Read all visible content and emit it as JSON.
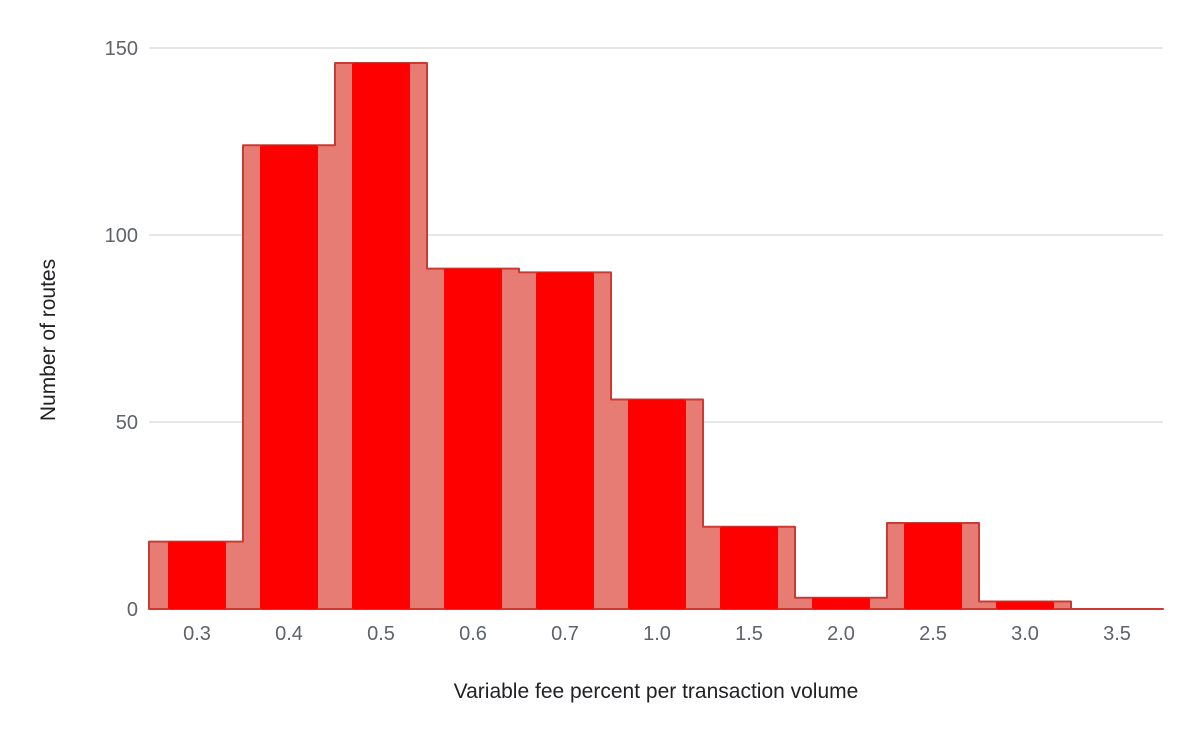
{
  "chart_data": {
    "type": "bar",
    "title": "",
    "xlabel": "Variable fee percent per transaction volume",
    "ylabel": "Number of routes",
    "categories": [
      "0.3",
      "0.4",
      "0.5",
      "0.6",
      "0.7",
      "1.0",
      "1.5",
      "2.0",
      "2.5",
      "3.0",
      "3.5"
    ],
    "series": [
      {
        "values": [
          18,
          124,
          146,
          91,
          90,
          56,
          22,
          3,
          23,
          2,
          0
        ]
      }
    ],
    "yticks": [
      0,
      50,
      100,
      150
    ],
    "ylim": [
      0,
      150
    ],
    "grid": true,
    "legend": "none",
    "colors": {
      "bar": "#ff0000",
      "area_fill": "#e67c73",
      "area_stroke": "#cc3b33",
      "grid": "#cccccc",
      "baseline": "#8b0000"
    }
  }
}
